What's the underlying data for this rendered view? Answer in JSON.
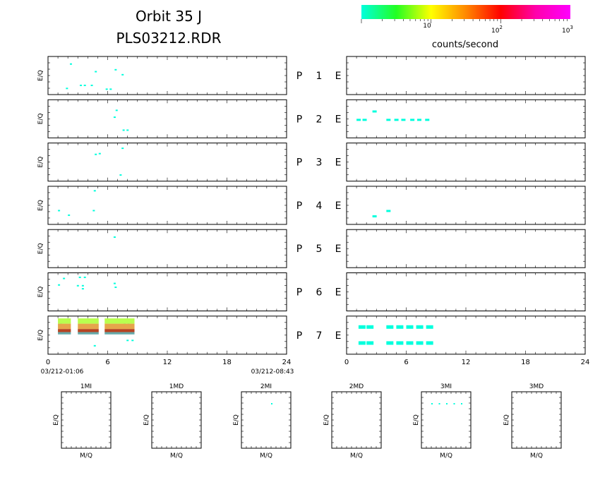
{
  "header": {
    "title": "Orbit 35 J",
    "filename": "PLS03212.RDR"
  },
  "colorbar": {
    "label": "counts/second",
    "stops": [
      "#00ffdd",
      "#22ff22",
      "#ffff00",
      "#ff8800",
      "#ff0000",
      "#ff00aa",
      "#ff00ff"
    ],
    "ticks": [
      {
        "base": "10",
        "exp": ""
      },
      {
        "base": "10",
        "exp": "2"
      },
      {
        "base": "10",
        "exp": "3"
      }
    ]
  },
  "panel_ylabel": "E/Q",
  "plot_labels": [
    {
      "p": "P",
      "n": "1",
      "e": "E"
    },
    {
      "p": "P",
      "n": "2",
      "e": "E"
    },
    {
      "p": "P",
      "n": "3",
      "e": "E"
    },
    {
      "p": "P",
      "n": "4",
      "e": "E"
    },
    {
      "p": "P",
      "n": "5",
      "e": "E"
    },
    {
      "p": "P",
      "n": "6",
      "e": "E"
    },
    {
      "p": "P",
      "n": "7",
      "e": "E"
    }
  ],
  "time_axis": {
    "ticks": [
      "0",
      "6",
      "12",
      "18",
      "24"
    ],
    "start_label": "03/212-01:06",
    "end_label": "03/212-08:43"
  },
  "bottom_panels": [
    {
      "title": "1MI",
      "xlabel": "M/Q",
      "ylabel": "E/Q"
    },
    {
      "title": "1MD",
      "xlabel": "M/Q",
      "ylabel": "E/Q"
    },
    {
      "title": "2MI",
      "xlabel": "M/Q",
      "ylabel": "E/Q"
    },
    {
      "title": "2MD",
      "xlabel": "M/Q",
      "ylabel": "E/Q"
    },
    {
      "title": "3MI",
      "xlabel": "M/Q",
      "ylabel": "E/Q"
    },
    {
      "title": "3MD",
      "xlabel": "M/Q",
      "ylabel": "E/Q"
    }
  ],
  "chart_data": {
    "type": "heatmap",
    "x_range": [
      0,
      24
    ],
    "y_range": [
      0,
      1
    ],
    "left_series": [
      {
        "name": "P 1",
        "points": [
          [
            2.2,
            0.82
          ],
          [
            4.7,
            0.62
          ],
          [
            6.7,
            0.67
          ],
          [
            7.4,
            0.54
          ],
          [
            3.2,
            0.26
          ],
          [
            3.6,
            0.26
          ],
          [
            4.3,
            0.26
          ],
          [
            1.8,
            0.18
          ],
          [
            5.8,
            0.16
          ],
          [
            6.2,
            0.16
          ]
        ]
      },
      {
        "name": "P 2",
        "points": [
          [
            6.8,
            0.74
          ],
          [
            6.6,
            0.56
          ],
          [
            7.5,
            0.22
          ],
          [
            7.9,
            0.22
          ]
        ]
      },
      {
        "name": "P 3",
        "points": [
          [
            7.4,
            0.88
          ],
          [
            4.7,
            0.72
          ],
          [
            5.1,
            0.74
          ],
          [
            7.2,
            0.18
          ]
        ]
      },
      {
        "name": "P 4",
        "points": [
          [
            4.6,
            0.9
          ],
          [
            1.0,
            0.38
          ],
          [
            4.5,
            0.38
          ],
          [
            2.0,
            0.26
          ]
        ]
      },
      {
        "name": "P 5",
        "points": [
          [
            6.6,
            0.82
          ]
        ]
      },
      {
        "name": "P 6",
        "points": [
          [
            1.5,
            0.87
          ],
          [
            3.1,
            0.9
          ],
          [
            3.6,
            0.9
          ],
          [
            1.0,
            0.7
          ],
          [
            2.9,
            0.68
          ],
          [
            3.4,
            0.68
          ],
          [
            6.6,
            0.74
          ],
          [
            6.7,
            0.64
          ],
          [
            3.4,
            0.6
          ]
        ]
      },
      {
        "name": "P 7",
        "points": [
          [
            1.2,
            0.82
          ],
          [
            2.0,
            0.84
          ],
          [
            3.2,
            0.84
          ],
          [
            4.0,
            0.86
          ],
          [
            5.8,
            0.86
          ],
          [
            6.5,
            0.84
          ],
          [
            7.6,
            0.82
          ],
          [
            8.0,
            0.82
          ],
          [
            7.9,
            0.38
          ],
          [
            8.4,
            0.38
          ],
          [
            4.6,
            0.24
          ]
        ]
      }
    ],
    "right_series": [
      {
        "name": "P 2",
        "points": [
          [
            1.0,
            0.5
          ],
          [
            1.6,
            0.5
          ],
          [
            2.6,
            0.72
          ],
          [
            4.0,
            0.5
          ],
          [
            4.8,
            0.5
          ],
          [
            5.5,
            0.5
          ],
          [
            6.4,
            0.5
          ],
          [
            7.1,
            0.5
          ],
          [
            7.9,
            0.5
          ]
        ]
      },
      {
        "name": "P 4",
        "points": [
          [
            4.0,
            0.38
          ],
          [
            2.6,
            0.24
          ]
        ]
      },
      {
        "name": "P 7",
        "points": [
          [
            1.2,
            0.76
          ],
          [
            2.0,
            0.76
          ],
          [
            4.0,
            0.76
          ],
          [
            5.0,
            0.76
          ],
          [
            6.0,
            0.76
          ],
          [
            7.0,
            0.76
          ],
          [
            8.0,
            0.76
          ],
          [
            1.2,
            0.34
          ],
          [
            2.0,
            0.34
          ],
          [
            4.0,
            0.34
          ],
          [
            5.0,
            0.34
          ],
          [
            6.0,
            0.34
          ],
          [
            7.0,
            0.34
          ],
          [
            8.0,
            0.34
          ]
        ]
      }
    ],
    "p7_band": {
      "segments": [
        [
          1.0,
          2.3
        ],
        [
          3.0,
          5.1
        ],
        [
          5.7,
          8.7
        ]
      ],
      "layers": [
        {
          "y_top": 0.94,
          "y_bottom": 0.8,
          "color": "#b9ff4f"
        },
        {
          "y_top": 0.8,
          "y_bottom": 0.66,
          "color": "#e6a54b"
        },
        {
          "y_top": 0.66,
          "y_bottom": 0.58,
          "color": "#b64322"
        },
        {
          "y_top": 0.58,
          "y_bottom": 0.52,
          "color": "#66a9a9"
        }
      ]
    },
    "bottom_points": [
      {
        "panel": "2MI",
        "points": [
          [
            0.6,
            0.8
          ]
        ]
      },
      {
        "panel": "3MI",
        "points": [
          [
            0.2,
            0.8
          ],
          [
            0.35,
            0.8
          ],
          [
            0.5,
            0.8
          ],
          [
            0.65,
            0.8
          ],
          [
            0.8,
            0.8
          ]
        ]
      }
    ]
  }
}
